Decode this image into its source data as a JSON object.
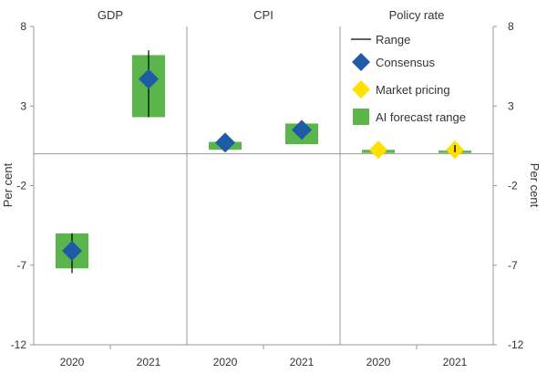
{
  "colors": {
    "consensus": "#1f5aa6",
    "market_pricing": "#ffe000",
    "ai_range": "#5ab54b",
    "range_line": "#000000",
    "axis": "#999999"
  },
  "chart_data": {
    "type": "bar",
    "panels": [
      "GDP",
      "CPI",
      "Policy rate"
    ],
    "categories": [
      "2020",
      "2021"
    ],
    "ylabel_left": "Per cent",
    "ylabel_right": "Per cent",
    "ylim": [
      -12,
      8
    ],
    "yticks": [
      8,
      3,
      -2,
      -7,
      -12
    ],
    "yticks_labels": [
      "8",
      "3",
      "-2",
      "-7",
      "-12"
    ],
    "legend": {
      "placement": "top-right",
      "entries": [
        "Range",
        "Consensus",
        "Market pricing",
        "AI forecast range"
      ]
    },
    "series": [
      {
        "name": "AI forecast range",
        "kind": "range_bar",
        "points": [
          {
            "panel": "GDP",
            "category": "2020",
            "low": -7.2,
            "high": -5.0
          },
          {
            "panel": "GDP",
            "category": "2021",
            "low": 2.3,
            "high": 6.2
          },
          {
            "panel": "CPI",
            "category": "2020",
            "low": 0.25,
            "high": 0.75
          },
          {
            "panel": "CPI",
            "category": "2021",
            "low": 0.6,
            "high": 1.9
          },
          {
            "panel": "Policy rate",
            "category": "2020",
            "low": 0.05,
            "high": 0.25
          },
          {
            "panel": "Policy rate",
            "category": "2021",
            "low": 0.05,
            "high": 0.2
          }
        ]
      },
      {
        "name": "Range",
        "kind": "whisker",
        "points": [
          {
            "panel": "GDP",
            "category": "2020",
            "low": -7.5,
            "high": -5.0
          },
          {
            "panel": "GDP",
            "category": "2021",
            "low": 2.3,
            "high": 6.5
          },
          {
            "panel": "CPI",
            "category": "2020",
            "low": 0.3,
            "high": 0.9
          },
          {
            "panel": "CPI",
            "category": "2021",
            "low": 1.2,
            "high": 1.8
          },
          {
            "panel": "Policy rate",
            "category": "2021",
            "low": 0.1,
            "high": 0.55
          }
        ]
      },
      {
        "name": "Consensus",
        "kind": "marker",
        "points": [
          {
            "panel": "GDP",
            "category": "2020",
            "value": -6.1
          },
          {
            "panel": "GDP",
            "category": "2021",
            "value": 4.7
          },
          {
            "panel": "CPI",
            "category": "2020",
            "value": 0.7
          },
          {
            "panel": "CPI",
            "category": "2021",
            "value": 1.5
          }
        ]
      },
      {
        "name": "Market pricing",
        "kind": "marker",
        "points": [
          {
            "panel": "Policy rate",
            "category": "2020",
            "value": 0.25
          },
          {
            "panel": "Policy rate",
            "category": "2021",
            "value": 0.25
          }
        ]
      }
    ]
  }
}
